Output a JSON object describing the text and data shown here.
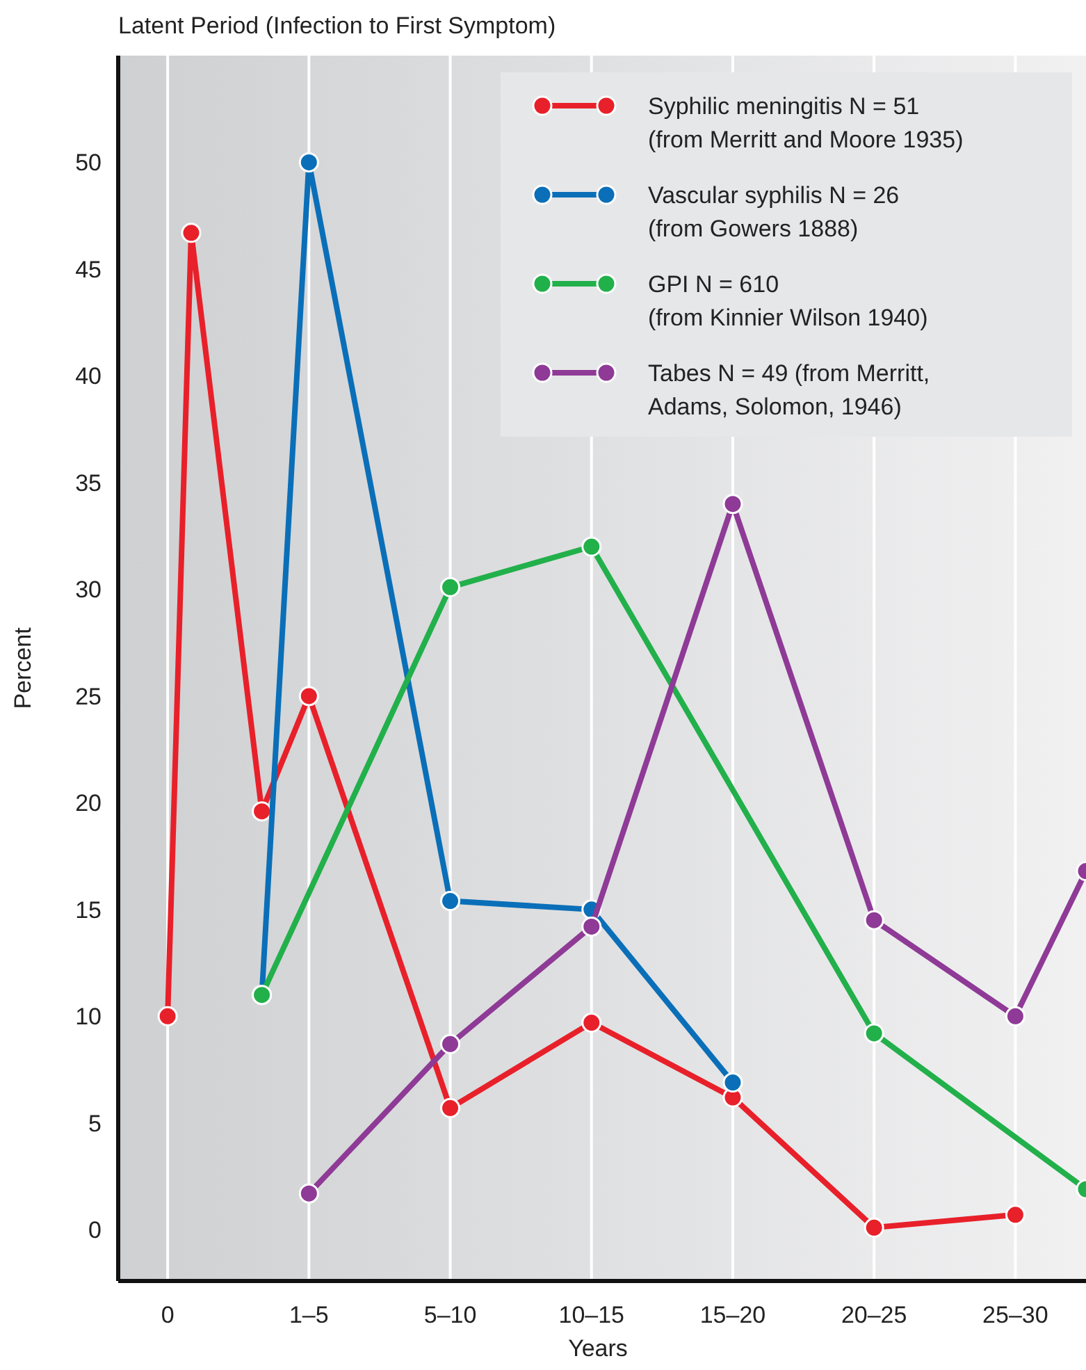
{
  "chart_data": {
    "type": "line",
    "title": "Latent Period (Infection to First Symptom)",
    "xlabel": "Years",
    "ylabel": "Percent",
    "categories": [
      "0",
      null,
      null,
      null,
      null,
      null,
      "1–5",
      null,
      null,
      null,
      null,
      null,
      "5–10",
      null,
      null,
      null,
      null,
      null,
      "10–15",
      null,
      null,
      null,
      null,
      null,
      "15–20",
      null,
      null,
      null,
      null,
      null,
      "20–25",
      null,
      null,
      null,
      null,
      null,
      "25–30",
      null,
      null,
      null
    ],
    "ylim": [
      -2.4,
      55
    ],
    "yticks": [
      0,
      5,
      10,
      15,
      20,
      25,
      30,
      35,
      40,
      45,
      50
    ],
    "grid": "x",
    "legend": "top right",
    "marker": "circle",
    "line_style": "solid",
    "series": [
      {
        "name": "Syphilic meningitis N = 51\n(from Merritt and Moore 1935)",
        "color": "#e8202a",
        "values": [
          10,
          46.7,
          null,
          null,
          19.6,
          null,
          25,
          null,
          null,
          null,
          null,
          null,
          5.7,
          null,
          null,
          null,
          null,
          null,
          9.7,
          null,
          null,
          null,
          null,
          null,
          6.2,
          null,
          null,
          null,
          null,
          null,
          0.1,
          null,
          null,
          null,
          null,
          null,
          0.7,
          null,
          null,
          null
        ]
      },
      {
        "name": "Vascular syphilis N = 26\n(from Gowers 1888)",
        "color": "#0a6fb8",
        "values": [
          null,
          null,
          null,
          null,
          11,
          null,
          50,
          null,
          null,
          null,
          null,
          null,
          15.4,
          null,
          null,
          null,
          null,
          null,
          15,
          null,
          null,
          null,
          null,
          null,
          6.9,
          null,
          null,
          null,
          null,
          null,
          null,
          null,
          null,
          null,
          null,
          null,
          null,
          null,
          null,
          null
        ]
      },
      {
        "name": "GPI N = 610\n(from Kinnier Wilson 1940)",
        "color": "#22b04b",
        "values": [
          null,
          null,
          null,
          null,
          11,
          null,
          null,
          null,
          null,
          null,
          null,
          null,
          30.1,
          null,
          null,
          null,
          null,
          null,
          32,
          null,
          null,
          null,
          null,
          null,
          null,
          null,
          null,
          null,
          null,
          null,
          9.2,
          null,
          null,
          null,
          null,
          null,
          null,
          null,
          null,
          1.9
        ]
      },
      {
        "name": "Tabes N = 49 (from Merritt,\nAdams, Solomon, 1946)",
        "color": "#8e3a96",
        "values": [
          null,
          null,
          null,
          null,
          null,
          null,
          1.7,
          null,
          null,
          null,
          null,
          null,
          8.7,
          null,
          null,
          null,
          null,
          null,
          14.2,
          null,
          null,
          null,
          null,
          null,
          34,
          null,
          null,
          null,
          null,
          null,
          14.5,
          null,
          null,
          null,
          null,
          null,
          10,
          null,
          null,
          16.8
        ]
      }
    ]
  }
}
